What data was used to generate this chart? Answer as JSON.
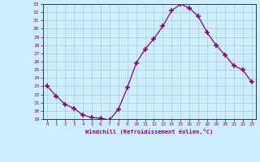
{
  "x": [
    0,
    1,
    2,
    3,
    4,
    5,
    6,
    7,
    8,
    9,
    10,
    11,
    12,
    13,
    14,
    15,
    16,
    17,
    18,
    19,
    20,
    21,
    22,
    23
  ],
  "y": [
    23.0,
    21.8,
    20.8,
    20.3,
    19.5,
    19.2,
    19.1,
    18.9,
    20.2,
    22.8,
    25.8,
    27.5,
    28.8,
    30.3,
    32.2,
    33.0,
    32.5,
    31.5,
    29.5,
    28.0,
    26.8,
    25.5,
    25.0,
    23.5
  ],
  "line_color": "#880088",
  "marker": "+",
  "marker_size": 4,
  "marker_lw": 1.2,
  "bg_color": "#cceeff",
  "grid_color": "#aacccc",
  "xlabel": "Windchill (Refroidissement éolien,°C)",
  "xlabel_color": "#880088",
  "tick_color": "#880088",
  "spine_color": "#880088",
  "ylim": [
    19,
    33
  ],
  "xlim": [
    -0.5,
    23.5
  ],
  "yticks": [
    19,
    20,
    21,
    22,
    23,
    24,
    25,
    26,
    27,
    28,
    29,
    30,
    31,
    32,
    33
  ],
  "xticks": [
    0,
    1,
    2,
    3,
    4,
    5,
    6,
    7,
    8,
    9,
    10,
    11,
    12,
    13,
    14,
    15,
    16,
    17,
    18,
    19,
    20,
    21,
    22,
    23
  ]
}
